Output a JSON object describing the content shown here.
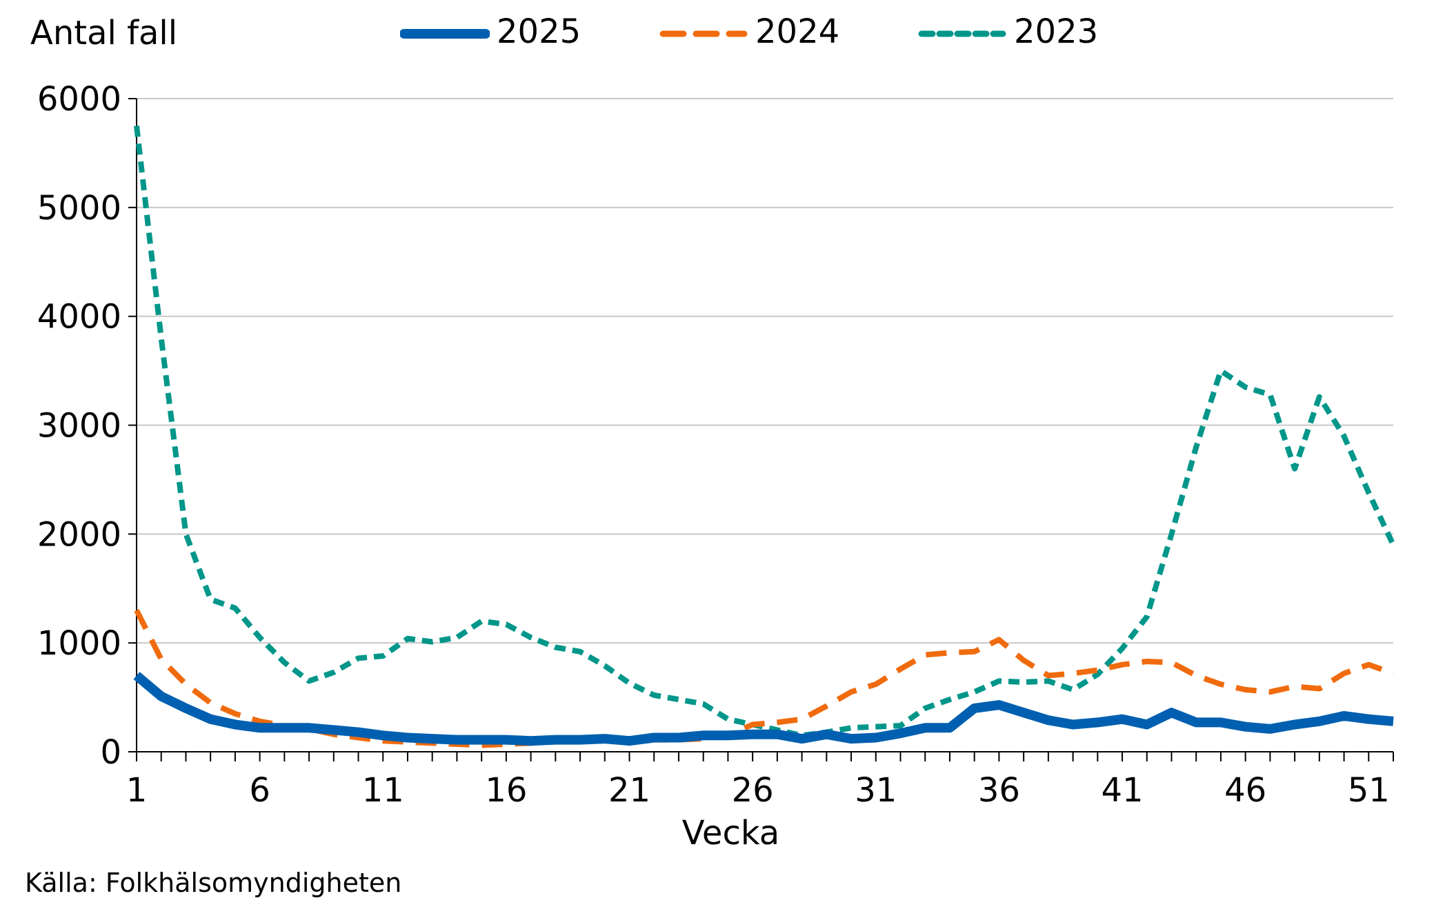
{
  "chart_data": {
    "type": "line",
    "ylabel": "Antal fall",
    "xlabel": "Vecka",
    "source": "Källa: Folkhälsomyndigheten",
    "ylim": [
      0,
      6000
    ],
    "yticks": [
      0,
      1000,
      2000,
      3000,
      4000,
      5000,
      6000
    ],
    "xlim": [
      1,
      52
    ],
    "xticks": [
      1,
      6,
      11,
      16,
      21,
      26,
      31,
      36,
      41,
      46,
      51
    ],
    "grid": true,
    "legend_position": "top",
    "x": [
      1,
      2,
      3,
      4,
      5,
      6,
      7,
      8,
      9,
      10,
      11,
      12,
      13,
      14,
      15,
      16,
      17,
      18,
      19,
      20,
      21,
      22,
      23,
      24,
      25,
      26,
      27,
      28,
      29,
      30,
      31,
      32,
      33,
      34,
      35,
      36,
      37,
      38,
      39,
      40,
      41,
      42,
      43,
      44,
      45,
      46,
      47,
      48,
      49,
      50,
      51,
      52
    ],
    "series": [
      {
        "name": "2025",
        "color": "#005fb0",
        "style": "solid",
        "values": [
          700,
          510,
          400,
          300,
          250,
          220,
          220,
          220,
          200,
          180,
          150,
          130,
          120,
          110,
          110,
          110,
          100,
          110,
          110,
          120,
          100,
          130,
          130,
          150,
          150,
          160,
          160,
          120,
          160,
          120,
          130,
          170,
          220,
          220,
          400,
          430,
          360,
          290,
          250,
          270,
          300,
          250,
          360,
          270,
          270,
          230,
          210,
          250,
          280,
          330,
          300,
          280
        ]
      },
      {
        "name": "2024",
        "color": "#f06b0d",
        "style": "dashed",
        "values": [
          1300,
          850,
          620,
          450,
          350,
          280,
          240,
          210,
          160,
          130,
          100,
          90,
          80,
          70,
          60,
          70,
          80,
          100,
          100,
          110,
          120,
          110,
          110,
          120,
          150,
          250,
          270,
          300,
          420,
          550,
          620,
          760,
          890,
          910,
          920,
          1030,
          840,
          700,
          720,
          750,
          800,
          830,
          820,
          700,
          620,
          570,
          550,
          600,
          580,
          720,
          800,
          720
        ]
      },
      {
        "name": "2023",
        "color": "#00968a",
        "style": "dotted",
        "values": [
          5750,
          3800,
          2000,
          1400,
          1320,
          1050,
          820,
          650,
          730,
          860,
          880,
          1040,
          1010,
          1050,
          1200,
          1170,
          1050,
          960,
          920,
          790,
          630,
          520,
          480,
          440,
          300,
          250,
          200,
          150,
          180,
          220,
          230,
          240,
          400,
          480,
          550,
          650,
          640,
          650,
          570,
          710,
          950,
          1240,
          2000,
          2800,
          3500,
          3350,
          3280,
          2600,
          3260,
          2900,
          2380,
          1900
        ]
      }
    ]
  }
}
